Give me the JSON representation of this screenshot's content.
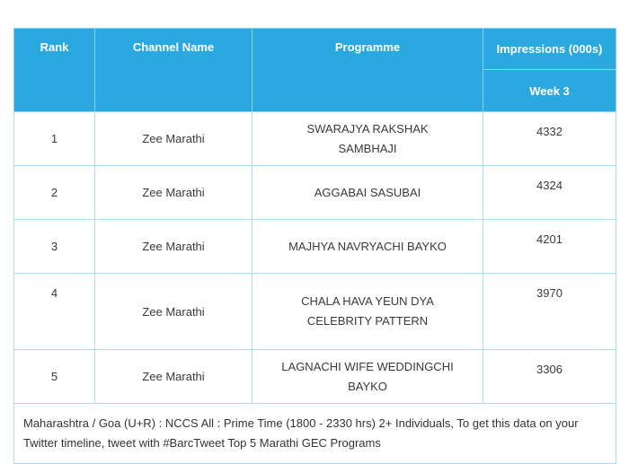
{
  "table": {
    "header": [
      "Rank",
      "Channel Name",
      "Programme",
      "Impressions (000s)"
    ],
    "subheader": "Week 3",
    "rows": [
      [
        1,
        "Zee Marathi",
        "SWARAJYA RAKSHAK SAMBHAJI",
        4332
      ],
      [
        2,
        "Zee Marathi",
        "AGGABAI SASUBAI",
        4324
      ],
      [
        3,
        "Zee Marathi",
        "MAJHYA NAVRYACHI BAYKO",
        4201
      ],
      [
        4,
        "Zee Marathi",
        "CHALA HAVA YEUN DYA CELEBRITY PATTERN",
        3970
      ],
      [
        5,
        "Zee Marathi",
        "LAGNACHI WIFE WEDDINGCHI BAYKO",
        3306
      ]
    ],
    "footnote": "Maharashtra / Goa (U+R) : NCCS All : Prime Time (1800 - 2330 hrs) 2+ Individuals, To get this data on your Twitter timeline, tweet with #BarcTweet Top 5 Marathi GEC Programs"
  }
}
